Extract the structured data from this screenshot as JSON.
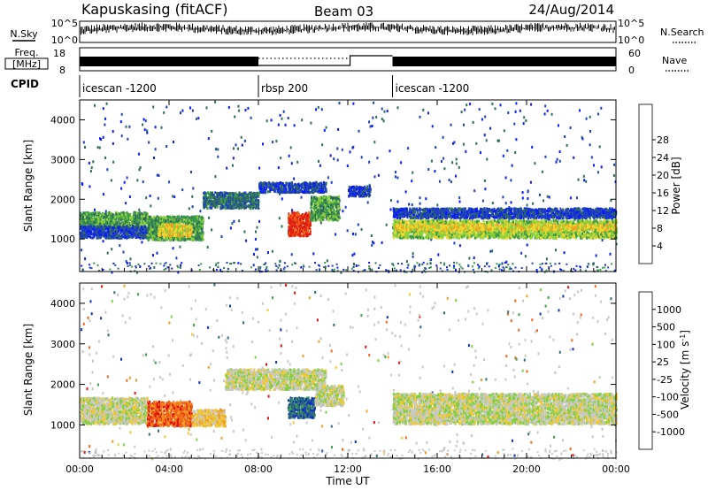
{
  "header": {
    "title": "Kapuskasing (fitACF)",
    "beam": "Beam 03",
    "date": "24/Aug/2014"
  },
  "noise_panel": {
    "left_label": "N.Sky",
    "right_label": "N.Search",
    "top_tick": "10^5",
    "bottom_tick": "10^0"
  },
  "freq_panel": {
    "left_label_1": "Freq.",
    "left_label_2": "[MHz]",
    "right_label": "Nave",
    "left_ticks": [
      "18",
      "8"
    ],
    "right_ticks": [
      "60",
      "0"
    ]
  },
  "cpid": {
    "label": "CPID",
    "segments": [
      {
        "name": "icescan -1200",
        "start": 0,
        "end": 8
      },
      {
        "name": "rbsp 200",
        "start": 8,
        "end": 14
      },
      {
        "name": "icescan -1200",
        "start": 14,
        "end": 24
      }
    ]
  },
  "x_axis": {
    "label": "Time UT",
    "range": [
      0,
      24
    ],
    "ticks": [
      "00:00",
      "04:00",
      "08:00",
      "12:00",
      "16:00",
      "20:00",
      "00:00"
    ]
  },
  "y_axis": {
    "label": "Slant Range [km]",
    "range": [
      180,
      4500
    ],
    "ticks": [
      "1000",
      "2000",
      "3000",
      "4000"
    ]
  },
  "power_colorbar": {
    "label": "Power [dB]",
    "ticks": [
      "4",
      "8",
      "12",
      "16",
      "20",
      "24",
      "28"
    ],
    "colors": [
      "#0a1aff",
      "#1d3fc0",
      "#2f6b5c",
      "#3a9a4a",
      "#8cd13a",
      "#f2d630",
      "#f0a020",
      "#f06818",
      "#e02010"
    ]
  },
  "velocity_colorbar": {
    "label": "Velocity [m s",
    "unit_exp": "-1",
    "unit_close": "]",
    "ticks": [
      "1000",
      "500",
      "100",
      "25",
      "-25",
      "-100",
      "-500",
      "-1000"
    ],
    "colors": [
      "#1030c0",
      "#2f6a7a",
      "#3fa04a",
      "#7ed040",
      "#c8c8c8",
      "#f0c830",
      "#f0a020",
      "#f06818",
      "#e01010"
    ]
  },
  "chart_data": {
    "type": "heatmap",
    "x_unit": "hours UT",
    "y_unit": "km",
    "power_regions": [
      {
        "t": [
          0.0,
          3.0
        ],
        "r": [
          1300,
          1700
        ],
        "level": 3
      },
      {
        "t": [
          0.0,
          3.0
        ],
        "r": [
          1050,
          1350
        ],
        "level": 1
      },
      {
        "t": [
          3.0,
          5.5
        ],
        "r": [
          1000,
          1600
        ],
        "level": 3
      },
      {
        "t": [
          3.5,
          5.0
        ],
        "r": [
          1100,
          1400
        ],
        "level": 5
      },
      {
        "t": [
          5.5,
          8.0
        ],
        "r": [
          1800,
          2200
        ],
        "level": 2
      },
      {
        "t": [
          8.0,
          11.0
        ],
        "r": [
          2200,
          2450
        ],
        "level": 1
      },
      {
        "t": [
          9.3,
          10.3
        ],
        "r": [
          1100,
          1700
        ],
        "level": 8
      },
      {
        "t": [
          10.3,
          11.6
        ],
        "r": [
          1500,
          2100
        ],
        "level": 3
      },
      {
        "t": [
          12.0,
          13.0
        ],
        "r": [
          2100,
          2350
        ],
        "level": 1
      },
      {
        "t": [
          14.0,
          24.0
        ],
        "r": [
          1550,
          1800
        ],
        "level": 1
      },
      {
        "t": [
          14.0,
          24.0
        ],
        "r": [
          1050,
          1500
        ],
        "level": 4
      },
      {
        "t": [
          14.0,
          24.0
        ],
        "r": [
          1250,
          1400
        ],
        "level": 5
      }
    ],
    "velocity_regions": [
      {
        "t": [
          0.0,
          3.0
        ],
        "r": [
          1050,
          1700
        ],
        "level": 4
      },
      {
        "t": [
          3.0,
          5.0
        ],
        "r": [
          1000,
          1600
        ],
        "level": 7
      },
      {
        "t": [
          5.0,
          6.5
        ],
        "r": [
          1000,
          1400
        ],
        "level": 5
      },
      {
        "t": [
          6.5,
          11.0
        ],
        "r": [
          1900,
          2400
        ],
        "level": 4
      },
      {
        "t": [
          9.3,
          10.5
        ],
        "r": [
          1200,
          1700
        ],
        "level": 1
      },
      {
        "t": [
          10.5,
          11.8
        ],
        "r": [
          1500,
          2000
        ],
        "level": 4
      },
      {
        "t": [
          14.0,
          24.0
        ],
        "r": [
          1050,
          1800
        ],
        "level": 4
      }
    ]
  }
}
